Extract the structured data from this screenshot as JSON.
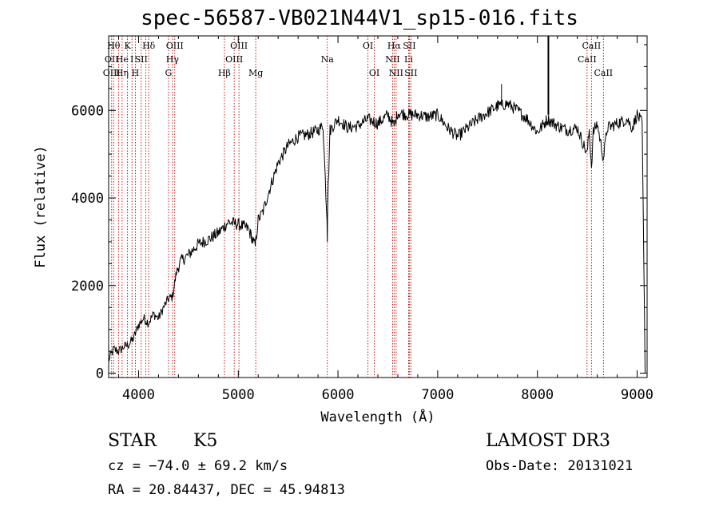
{
  "chart_data": {
    "type": "line",
    "title": "spec-56587-VB021N44V1_sp15-016.fits",
    "xlabel": "Wavelength (Å)",
    "ylabel": "Flux (relative)",
    "xlim": [
      3700,
      9100
    ],
    "ylim": [
      -100,
      7700
    ],
    "xticks": [
      4000,
      5000,
      6000,
      7000,
      8000,
      9000
    ],
    "yticks": [
      0,
      2000,
      4000,
      6000
    ],
    "grid": false,
    "series": [
      {
        "name": "spectrum",
        "x": [
          3700,
          3750,
          3800,
          3850,
          3900,
          3950,
          4000,
          4050,
          4100,
          4150,
          4200,
          4250,
          4300,
          4340,
          4380,
          4420,
          4500,
          4600,
          4700,
          4800,
          4900,
          5000,
          5100,
          5170,
          5200,
          5250,
          5300,
          5400,
          5500,
          5600,
          5700,
          5800,
          5850,
          5890,
          5893,
          5896,
          5920,
          6000,
          6100,
          6200,
          6300,
          6400,
          6500,
          6563,
          6600,
          6700,
          6800,
          6900,
          7000,
          7100,
          7200,
          7300,
          7400,
          7500,
          7600,
          7700,
          7800,
          7900,
          8000,
          8100,
          8200,
          8300,
          8400,
          8498,
          8520,
          8542,
          8560,
          8600,
          8662,
          8700,
          8800,
          8900,
          8950,
          9000,
          9050,
          9080
        ],
        "y": [
          300,
          550,
          500,
          600,
          650,
          800,
          1100,
          1250,
          1150,
          1350,
          1250,
          1500,
          1700,
          1750,
          2300,
          2550,
          2700,
          2950,
          3050,
          3200,
          3450,
          3400,
          3300,
          2900,
          3500,
          3700,
          4100,
          4800,
          5200,
          5400,
          5450,
          5550,
          5650,
          3500,
          3000,
          3800,
          5550,
          5800,
          5600,
          5650,
          5800,
          5700,
          5900,
          5650,
          5950,
          5900,
          5900,
          5850,
          5900,
          5600,
          5400,
          5600,
          5800,
          5950,
          6100,
          6150,
          6000,
          5800,
          5500,
          5800,
          5650,
          5550,
          5600,
          5000,
          5550,
          4700,
          5500,
          5700,
          4900,
          5600,
          5700,
          5800,
          5600,
          5900,
          5700,
          0
        ]
      }
    ],
    "lines": [
      {
        "x": 3730,
        "labels": [
          {
            "text": "OII",
            "row": 1
          },
          {
            "text": "OIII",
            "row": 2
          }
        ]
      },
      {
        "x": 3750,
        "labels": [
          {
            "text": "Hθ",
            "row": 0
          }
        ]
      },
      {
        "x": 3800,
        "labels": []
      },
      {
        "x": 3835,
        "labels": [
          {
            "text": "He",
            "row": 1
          },
          {
            "text": "Hη",
            "row": 2
          }
        ]
      },
      {
        "x": 3889,
        "labels": [
          {
            "text": "K",
            "row": 0
          }
        ]
      },
      {
        "x": 3934,
        "labels": [
          {
            "text": "I",
            "row": 1
          }
        ]
      },
      {
        "x": 3968,
        "labels": [
          {
            "text": "H",
            "row": 2
          }
        ]
      },
      {
        "x": 4026,
        "labels": [
          {
            "text": "SII",
            "row": 1
          }
        ]
      },
      {
        "x": 4072,
        "labels": []
      },
      {
        "x": 4102,
        "labels": [
          {
            "text": "Hδ",
            "row": 0
          }
        ]
      },
      {
        "x": 4300,
        "labels": [
          {
            "text": "G",
            "row": 2
          }
        ]
      },
      {
        "x": 4340,
        "labels": [
          {
            "text": "Hγ",
            "row": 1
          }
        ]
      },
      {
        "x": 4363,
        "labels": [
          {
            "text": "OIII",
            "row": 0
          }
        ]
      },
      {
        "x": 4861,
        "labels": [
          {
            "text": "Hβ",
            "row": 2
          }
        ]
      },
      {
        "x": 4959,
        "labels": [
          {
            "text": "OIII",
            "row": 1
          }
        ]
      },
      {
        "x": 5007,
        "labels": [
          {
            "text": "OIII",
            "row": 0
          }
        ]
      },
      {
        "x": 5175,
        "labels": [
          {
            "text": "Mg",
            "row": 2
          }
        ]
      },
      {
        "x": 5893,
        "labels": [
          {
            "text": "Na",
            "row": 1
          }
        ]
      },
      {
        "x": 6300,
        "labels": [
          {
            "text": "OI",
            "row": 0
          }
        ]
      },
      {
        "x": 6364,
        "labels": [
          {
            "text": "OI",
            "row": 2
          }
        ]
      },
      {
        "x": 6548,
        "labels": [
          {
            "text": "NII",
            "row": 1
          }
        ]
      },
      {
        "x": 6563,
        "labels": [
          {
            "text": "Hα",
            "row": 0
          }
        ]
      },
      {
        "x": 6583,
        "labels": [
          {
            "text": "NII",
            "row": 2
          }
        ]
      },
      {
        "x": 6708,
        "labels": [
          {
            "text": "Li",
            "row": 1
          }
        ]
      },
      {
        "x": 6716,
        "labels": [
          {
            "text": "SII",
            "row": 0
          }
        ]
      },
      {
        "x": 6731,
        "labels": [
          {
            "text": "SII",
            "row": 2
          }
        ]
      },
      {
        "x": 8498,
        "labels": [
          {
            "text": "CaII",
            "row": 1
          }
        ]
      },
      {
        "x": 8542,
        "labels": [
          {
            "text": "CaII",
            "row": 0
          }
        ]
      },
      {
        "x": 8662,
        "labels": [
          {
            "text": "CaII",
            "row": 2
          }
        ]
      }
    ]
  },
  "info": {
    "object_class": "STAR",
    "subclass": "K5",
    "survey": "LAMOST DR3",
    "cz": "cz = −74.0 ± 69.2 km/s",
    "obs_date": "Obs-Date: 20131021",
    "coords": "RA =  20.84437, DEC =  45.94813"
  }
}
